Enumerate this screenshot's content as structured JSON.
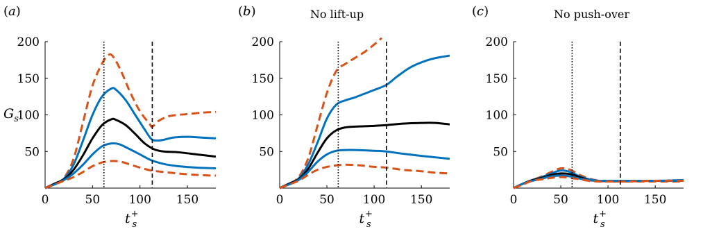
{
  "chart_data": [
    {
      "type": "line",
      "panel_label": "(a)",
      "title": "",
      "xlabel": "t_s^+",
      "ylabel": "G_s",
      "xlim": [
        0,
        180
      ],
      "ylim": [
        0,
        200
      ],
      "xticks": [
        0,
        50,
        100,
        150
      ],
      "yticks": [
        50,
        100,
        150,
        200
      ],
      "vlines": [
        {
          "x": 62,
          "style": "dotted"
        },
        {
          "x": 113,
          "style": "dashed"
        }
      ],
      "series": [
        {
          "color": "#d95319",
          "dash": true,
          "points": [
            [
              0,
              0
            ],
            [
              10,
              6
            ],
            [
              20,
              14
            ],
            [
              30,
              40
            ],
            [
              40,
              90
            ],
            [
              50,
              140
            ],
            [
              60,
              170
            ],
            [
              67,
              182
            ],
            [
              72,
              179
            ],
            [
              80,
              160
            ],
            [
              90,
              130
            ],
            [
              100,
              105
            ],
            [
              110,
              88
            ],
            [
              113,
              84
            ],
            [
              120,
              92
            ],
            [
              130,
              98
            ],
            [
              140,
              100
            ],
            [
              150,
              101
            ],
            [
              165,
              103
            ],
            [
              180,
              104
            ]
          ]
        },
        {
          "color": "#0072bd",
          "dash": false,
          "points": [
            [
              0,
              0
            ],
            [
              10,
              6
            ],
            [
              20,
              13
            ],
            [
              30,
              32
            ],
            [
              40,
              65
            ],
            [
              50,
              100
            ],
            [
              60,
              125
            ],
            [
              70,
              136
            ],
            [
              75,
              134
            ],
            [
              85,
              120
            ],
            [
              95,
              100
            ],
            [
              105,
              80
            ],
            [
              112,
              67
            ],
            [
              118,
              65
            ],
            [
              125,
              66
            ],
            [
              135,
              69
            ],
            [
              150,
              70
            ],
            [
              165,
              69
            ],
            [
              180,
              68
            ]
          ]
        },
        {
          "color": "#000000",
          "dash": false,
          "points": [
            [
              0,
              0
            ],
            [
              10,
              6
            ],
            [
              20,
              12
            ],
            [
              30,
              25
            ],
            [
              40,
              45
            ],
            [
              50,
              68
            ],
            [
              60,
              86
            ],
            [
              70,
              94
            ],
            [
              75,
              93
            ],
            [
              85,
              86
            ],
            [
              95,
              74
            ],
            [
              105,
              61
            ],
            [
              115,
              53
            ],
            [
              125,
              50
            ],
            [
              140,
              49
            ],
            [
              160,
              46
            ],
            [
              180,
              43
            ]
          ]
        },
        {
          "color": "#0072bd",
          "dash": false,
          "points": [
            [
              0,
              0
            ],
            [
              10,
              5
            ],
            [
              20,
              11
            ],
            [
              30,
              20
            ],
            [
              40,
              32
            ],
            [
              50,
              46
            ],
            [
              60,
              57
            ],
            [
              70,
              61
            ],
            [
              78,
              60
            ],
            [
              88,
              54
            ],
            [
              100,
              46
            ],
            [
              112,
              38
            ],
            [
              125,
              33
            ],
            [
              140,
              30
            ],
            [
              160,
              28
            ],
            [
              180,
              27
            ]
          ]
        },
        {
          "color": "#d95319",
          "dash": true,
          "points": [
            [
              0,
              0
            ],
            [
              10,
              5
            ],
            [
              20,
              10
            ],
            [
              30,
              15
            ],
            [
              40,
              22
            ],
            [
              50,
              30
            ],
            [
              60,
              35
            ],
            [
              70,
              37
            ],
            [
              80,
              36
            ],
            [
              90,
              32
            ],
            [
              100,
              28
            ],
            [
              112,
              24
            ],
            [
              125,
              22
            ],
            [
              140,
              20
            ],
            [
              160,
              18
            ],
            [
              180,
              17
            ]
          ]
        }
      ]
    },
    {
      "type": "line",
      "panel_label": "(b)",
      "title": "No lift-up",
      "xlabel": "t_s^+",
      "ylabel": "",
      "xlim": [
        0,
        180
      ],
      "ylim": [
        0,
        200
      ],
      "xticks": [
        0,
        50,
        100,
        150
      ],
      "yticks": [
        50,
        100,
        150,
        200
      ],
      "vlines": [
        {
          "x": 62,
          "style": "dotted"
        },
        {
          "x": 113,
          "style": "dashed"
        }
      ],
      "series": [
        {
          "color": "#d95319",
          "dash": true,
          "points": [
            [
              0,
              0
            ],
            [
              10,
              6
            ],
            [
              20,
              15
            ],
            [
              30,
              40
            ],
            [
              40,
              85
            ],
            [
              50,
              130
            ],
            [
              60,
              160
            ],
            [
              70,
              170
            ],
            [
              80,
              178
            ],
            [
              90,
              186
            ],
            [
              100,
              196
            ],
            [
              108,
              205
            ]
          ]
        },
        {
          "color": "#0072bd",
          "dash": false,
          "points": [
            [
              0,
              0
            ],
            [
              10,
              6
            ],
            [
              20,
              13
            ],
            [
              30,
              32
            ],
            [
              40,
              62
            ],
            [
              50,
              95
            ],
            [
              60,
              114
            ],
            [
              70,
              120
            ],
            [
              80,
              124
            ],
            [
              90,
              129
            ],
            [
              100,
              134
            ],
            [
              113,
              141
            ],
            [
              125,
              153
            ],
            [
              140,
              166
            ],
            [
              160,
              176
            ],
            [
              180,
              181
            ]
          ]
        },
        {
          "color": "#000000",
          "dash": false,
          "points": [
            [
              0,
              0
            ],
            [
              10,
              6
            ],
            [
              20,
              12
            ],
            [
              30,
              26
            ],
            [
              40,
              48
            ],
            [
              50,
              68
            ],
            [
              60,
              79
            ],
            [
              70,
              83
            ],
            [
              80,
              84
            ],
            [
              100,
              85
            ],
            [
              113,
              86
            ],
            [
              130,
              88
            ],
            [
              150,
              89
            ],
            [
              165,
              89
            ],
            [
              180,
              87
            ]
          ]
        },
        {
          "color": "#0072bd",
          "dash": false,
          "points": [
            [
              0,
              0
            ],
            [
              10,
              5
            ],
            [
              20,
              11
            ],
            [
              30,
              22
            ],
            [
              40,
              36
            ],
            [
              50,
              46
            ],
            [
              60,
              51
            ],
            [
              70,
              52
            ],
            [
              80,
              52
            ],
            [
              100,
              51
            ],
            [
              113,
              50
            ],
            [
              130,
              47
            ],
            [
              150,
              44
            ],
            [
              165,
              42
            ],
            [
              180,
              40
            ]
          ]
        },
        {
          "color": "#d95319",
          "dash": true,
          "points": [
            [
              0,
              0
            ],
            [
              10,
              5
            ],
            [
              20,
              10
            ],
            [
              30,
              18
            ],
            [
              40,
              25
            ],
            [
              50,
              29
            ],
            [
              60,
              31
            ],
            [
              70,
              32
            ],
            [
              85,
              31
            ],
            [
              100,
              29
            ],
            [
              113,
              28
            ],
            [
              130,
              25
            ],
            [
              150,
              23
            ],
            [
              165,
              21
            ],
            [
              180,
              20
            ]
          ]
        }
      ]
    },
    {
      "type": "line",
      "panel_label": "(c)",
      "title": "No push-over",
      "xlabel": "t_s^+",
      "ylabel": "",
      "xlim": [
        0,
        180
      ],
      "ylim": [
        0,
        200
      ],
      "xticks": [
        0,
        50,
        100,
        150
      ],
      "yticks": [
        50,
        100,
        150,
        200
      ],
      "vlines": [
        {
          "x": 62,
          "style": "dotted"
        },
        {
          "x": 113,
          "style": "dashed"
        }
      ],
      "series": [
        {
          "color": "#d95319",
          "dash": true,
          "points": [
            [
              0,
              0
            ],
            [
              10,
              6
            ],
            [
              20,
              11
            ],
            [
              30,
              16
            ],
            [
              40,
              22
            ],
            [
              50,
              27
            ],
            [
              60,
              25
            ],
            [
              70,
              18
            ],
            [
              80,
              13
            ],
            [
              90,
              10
            ],
            [
              100,
              9
            ],
            [
              120,
              9
            ],
            [
              150,
              9
            ],
            [
              180,
              9
            ]
          ]
        },
        {
          "color": "#0072bd",
          "dash": false,
          "points": [
            [
              0,
              0
            ],
            [
              10,
              6
            ],
            [
              20,
              11
            ],
            [
              30,
              15
            ],
            [
              40,
              20
            ],
            [
              50,
              24
            ],
            [
              60,
              22
            ],
            [
              70,
              16
            ],
            [
              80,
              12
            ],
            [
              90,
              10
            ],
            [
              100,
              10
            ],
            [
              120,
              10
            ],
            [
              150,
              10
            ],
            [
              180,
              11
            ]
          ]
        },
        {
          "color": "#000000",
          "dash": false,
          "points": [
            [
              0,
              0
            ],
            [
              10,
              6
            ],
            [
              20,
              11
            ],
            [
              30,
              14
            ],
            [
              40,
              18
            ],
            [
              50,
              20
            ],
            [
              60,
              19
            ],
            [
              70,
              15
            ],
            [
              80,
              11
            ],
            [
              90,
              10
            ],
            [
              100,
              10
            ],
            [
              120,
              10
            ],
            [
              150,
              10
            ],
            [
              180,
              10
            ]
          ]
        },
        {
          "color": "#0072bd",
          "dash": false,
          "points": [
            [
              0,
              0
            ],
            [
              10,
              6
            ],
            [
              20,
              10
            ],
            [
              30,
              13
            ],
            [
              40,
              16
            ],
            [
              50,
              17
            ],
            [
              60,
              16
            ],
            [
              70,
              13
            ],
            [
              80,
              11
            ],
            [
              90,
              10
            ],
            [
              100,
              10
            ],
            [
              120,
              10
            ],
            [
              150,
              10
            ],
            [
              180,
              10
            ]
          ]
        },
        {
          "color": "#d95319",
          "dash": true,
          "points": [
            [
              0,
              0
            ],
            [
              10,
              5
            ],
            [
              20,
              10
            ],
            [
              30,
              12
            ],
            [
              40,
              14
            ],
            [
              50,
              15
            ],
            [
              60,
              14
            ],
            [
              70,
              12
            ],
            [
              80,
              10
            ],
            [
              90,
              9
            ],
            [
              100,
              9
            ],
            [
              120,
              9
            ],
            [
              150,
              10
            ],
            [
              180,
              10
            ]
          ]
        }
      ]
    }
  ]
}
